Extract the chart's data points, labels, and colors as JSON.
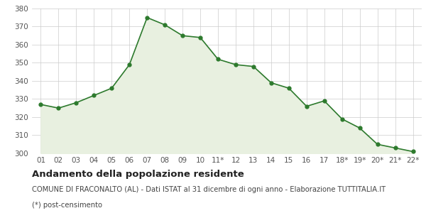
{
  "x_labels": [
    "01",
    "02",
    "03",
    "04",
    "05",
    "06",
    "07",
    "08",
    "09",
    "10",
    "11*",
    "12",
    "13",
    "14",
    "15",
    "16",
    "17",
    "18*",
    "19*",
    "20*",
    "21*",
    "22*"
  ],
  "y_values": [
    327,
    325,
    328,
    332,
    336,
    349,
    375,
    371,
    365,
    364,
    352,
    349,
    348,
    339,
    336,
    326,
    329,
    319,
    314,
    305,
    303,
    301
  ],
  "line_color": "#2d7a2d",
  "fill_color": "#e8f0e0",
  "marker_color": "#2d7a2d",
  "background_color": "#ffffff",
  "grid_color": "#cccccc",
  "ylim": [
    300,
    380
  ],
  "yticks": [
    300,
    310,
    320,
    330,
    340,
    350,
    360,
    370,
    380
  ],
  "title": "Andamento della popolazione residente",
  "subtitle": "COMUNE DI FRACONALTO (AL) - Dati ISTAT al 31 dicembre di ogni anno - Elaborazione TUTTITALIA.IT",
  "footnote": "(*) post-censimento",
  "title_fontsize": 9.5,
  "subtitle_fontsize": 7.2,
  "footnote_fontsize": 7.2,
  "tick_fontsize": 7.5
}
